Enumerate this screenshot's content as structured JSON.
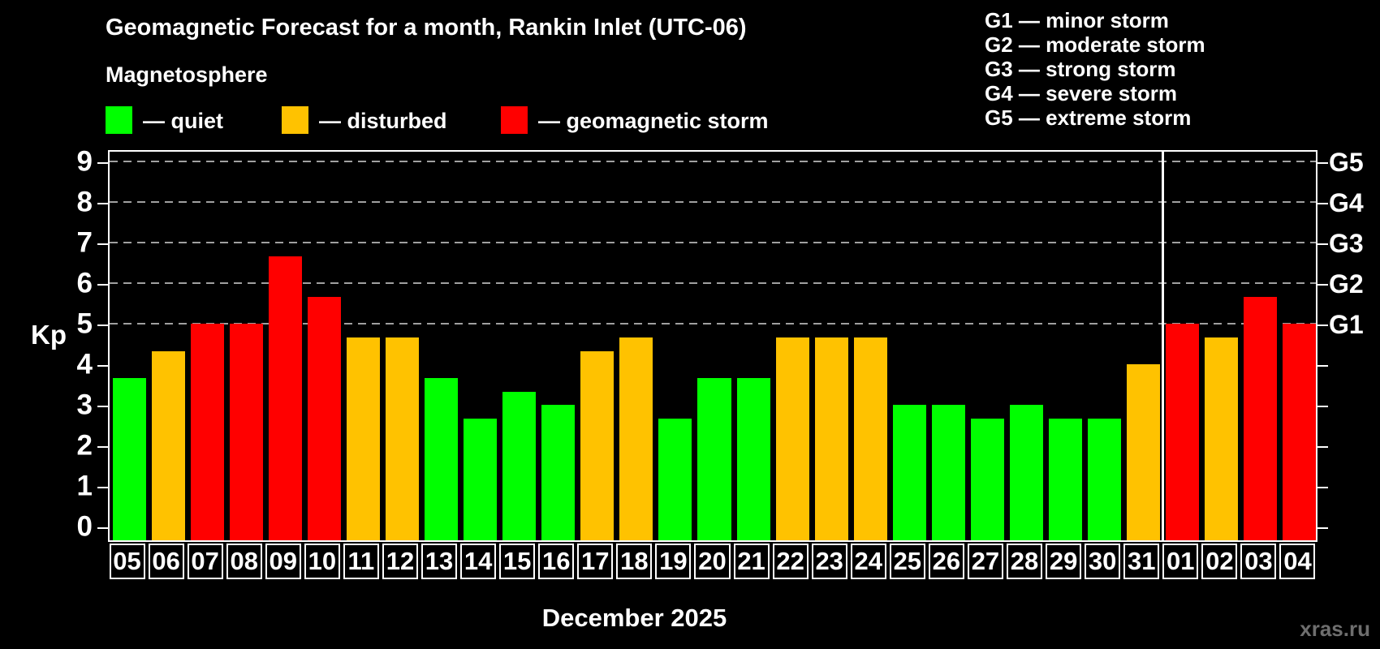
{
  "title": "Geomagnetic Forecast for a month, Rankin Inlet (UTC-06)",
  "subtitle": "Magnetosphere",
  "legend": {
    "items": [
      {
        "label": "— quiet",
        "color": "#00ff00",
        "status": "quiet"
      },
      {
        "label": "— disturbed",
        "color": "#ffc200",
        "status": "disturbed"
      },
      {
        "label": "— geomagnetic storm",
        "color": "#ff0000",
        "status": "storm"
      }
    ]
  },
  "g_scale_legend": [
    "G1 — minor storm",
    "G2 — moderate storm",
    "G3 — strong storm",
    "G4 — severe storm",
    "G5 — extreme storm"
  ],
  "y_axis": {
    "label": "Kp",
    "ticks": [
      "0",
      "1",
      "2",
      "3",
      "4",
      "5",
      "6",
      "7",
      "8",
      "9"
    ]
  },
  "right_axis": {
    "labels": [
      {
        "kp": 5,
        "text": "G1"
      },
      {
        "kp": 6,
        "text": "G2"
      },
      {
        "kp": 7,
        "text": "G3"
      },
      {
        "kp": 8,
        "text": "G4"
      },
      {
        "kp": 9,
        "text": "G5"
      }
    ]
  },
  "xlabel": "December 2025",
  "watermark": "xras.ru",
  "chart_data": {
    "type": "bar",
    "title": "Geomagnetic Forecast for a month, Rankin Inlet (UTC-06)",
    "ylabel": "Kp",
    "ylim": [
      0,
      9
    ],
    "gridlines_at": [
      5,
      6,
      7,
      8,
      9
    ],
    "legend_position": "top",
    "december_day_count": 27,
    "categories": [
      "05",
      "06",
      "07",
      "08",
      "09",
      "10",
      "11",
      "12",
      "13",
      "14",
      "15",
      "16",
      "17",
      "18",
      "19",
      "20",
      "21",
      "22",
      "23",
      "24",
      "25",
      "26",
      "27",
      "28",
      "29",
      "30",
      "31",
      "01",
      "02",
      "03",
      "04"
    ],
    "values": [
      3.67,
      4.33,
      5,
      5,
      6.67,
      5.67,
      4.67,
      4.67,
      3.67,
      2.67,
      3.33,
      3,
      4.33,
      4.67,
      2.67,
      3.67,
      3.67,
      4.67,
      4.67,
      4.67,
      3,
      3,
      2.67,
      3,
      2.67,
      2.67,
      4,
      5,
      4.67,
      5.67,
      5
    ],
    "statuses": [
      "quiet",
      "disturbed",
      "storm",
      "storm",
      "storm",
      "storm",
      "disturbed",
      "disturbed",
      "quiet",
      "quiet",
      "quiet",
      "quiet",
      "disturbed",
      "disturbed",
      "quiet",
      "quiet",
      "quiet",
      "disturbed",
      "disturbed",
      "disturbed",
      "quiet",
      "quiet",
      "quiet",
      "quiet",
      "quiet",
      "quiet",
      "disturbed",
      "storm",
      "disturbed",
      "storm",
      "storm"
    ],
    "colors": {
      "quiet": "#00ff00",
      "disturbed": "#ffc200",
      "storm": "#ff0000"
    }
  }
}
